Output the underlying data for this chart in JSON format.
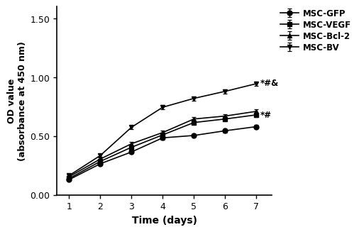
{
  "days": [
    1,
    2,
    3,
    4,
    5,
    6,
    7
  ],
  "MSC_GFP": [
    0.13,
    0.265,
    0.365,
    0.485,
    0.505,
    0.545,
    0.58
  ],
  "MSC_VEGF": [
    0.14,
    0.285,
    0.405,
    0.51,
    0.615,
    0.645,
    0.68
  ],
  "MSC_Bcl2": [
    0.155,
    0.305,
    0.435,
    0.53,
    0.645,
    0.67,
    0.71
  ],
  "MSC_BV": [
    0.165,
    0.335,
    0.575,
    0.745,
    0.82,
    0.88,
    0.945
  ],
  "MSC_GFP_err": [
    0.006,
    0.01,
    0.012,
    0.014,
    0.014,
    0.014,
    0.014
  ],
  "MSC_VEGF_err": [
    0.006,
    0.01,
    0.012,
    0.014,
    0.015,
    0.015,
    0.016
  ],
  "MSC_Bcl2_err": [
    0.006,
    0.01,
    0.013,
    0.014,
    0.017,
    0.017,
    0.018
  ],
  "MSC_BV_err": [
    0.006,
    0.012,
    0.015,
    0.018,
    0.018,
    0.018,
    0.018
  ],
  "labels": [
    "MSC-GFP",
    "MSC-VEGF",
    "MSC-Bcl-2",
    "MSC-BV"
  ],
  "markers": [
    "o",
    "s",
    "^",
    "v"
  ],
  "ylabel": "OD value\n(absorbance at 450 nm)",
  "xlabel": "Time (days)",
  "ylim": [
    0.0,
    1.6
  ],
  "yticks": [
    0.0,
    0.5,
    1.0,
    1.5
  ],
  "annot_BV": "*#&",
  "annot_Bcl2": "*#"
}
